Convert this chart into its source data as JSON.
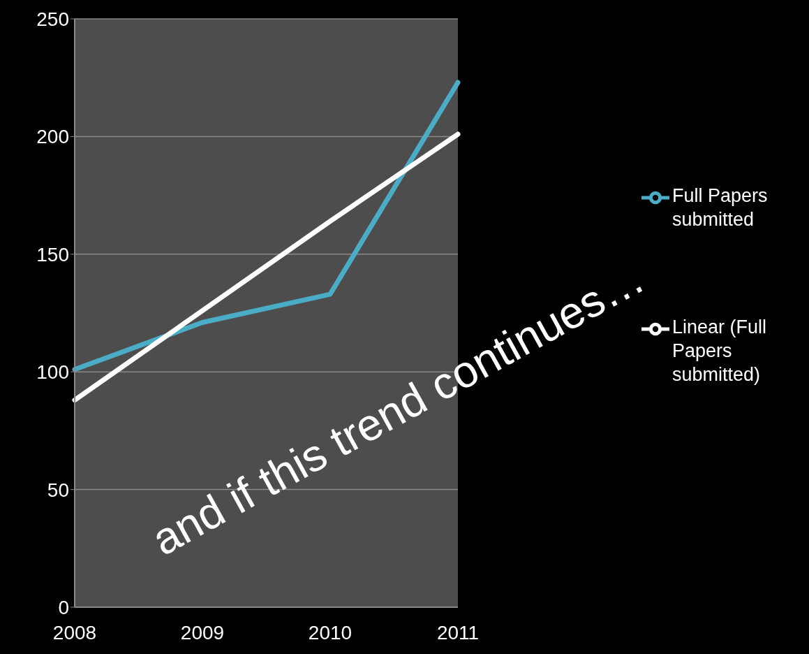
{
  "chart_data": {
    "type": "line",
    "categories": [
      "2008",
      "2009",
      "2010",
      "2011"
    ],
    "series": [
      {
        "name": "Full Papers submitted",
        "color": "#4bacc6",
        "values": [
          101,
          121,
          133,
          223
        ]
      },
      {
        "name": "Linear (Full Papers submitted)",
        "color": "#ffffff",
        "values": [
          88,
          126,
          164,
          201
        ]
      }
    ],
    "ylim": [
      0,
      250
    ],
    "yticks": [
      0,
      50,
      100,
      150,
      200,
      250
    ],
    "grid": "y",
    "legend": "right",
    "marker": "none",
    "line_style": "solid",
    "annotations": [
      "and if this trend continues…"
    ]
  }
}
